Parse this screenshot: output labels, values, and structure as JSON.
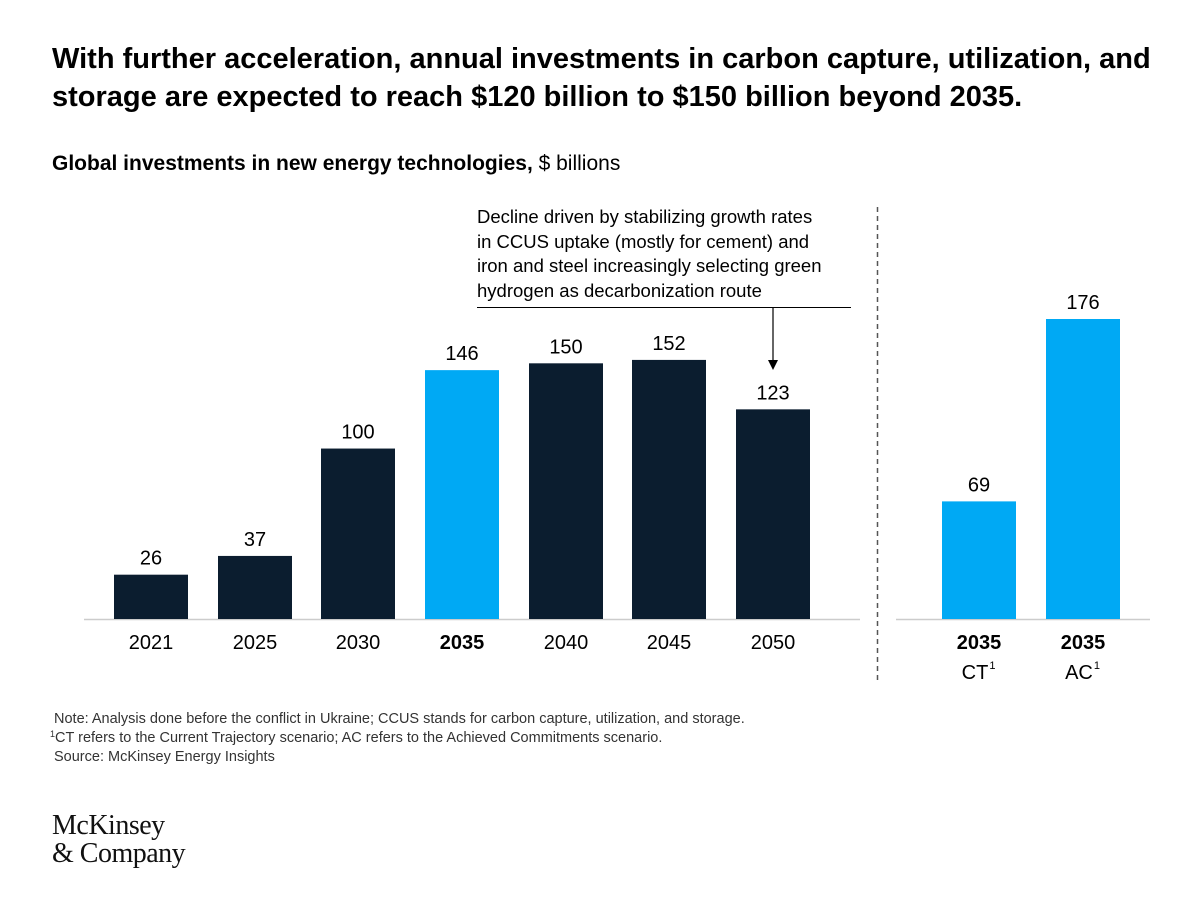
{
  "headline": "With further acceleration, annual investments in carbon capture, utilization, and storage are expected to reach $120 billion to $150 billion beyond 2035.",
  "subtitle": {
    "bold": "Global investments in new energy technologies,",
    "unit": " $ billions"
  },
  "annotation": {
    "lines": [
      "Decline driven by stabilizing growth rates",
      "in CCUS uptake (mostly for cement) and",
      "iron and steel increasingly selecting green",
      "hydrogen as decarbonization route"
    ]
  },
  "colors": {
    "dark": "#0b1d2f",
    "highlight": "#00a9f4",
    "axis": "#cccccc",
    "divider": "#555555"
  },
  "chart_data": {
    "type": "bar",
    "categories": [
      "2021",
      "2025",
      "2030",
      "2035",
      "2040",
      "2045",
      "2050",
      "2035",
      "2035"
    ],
    "category_sublabels": [
      "",
      "",
      "",
      "",
      "",
      "",
      "",
      "CT",
      "AC"
    ],
    "sublabel_footnote": "1",
    "bold_categories": [
      false,
      false,
      false,
      true,
      false,
      false,
      false,
      true,
      true
    ],
    "values": [
      26,
      37,
      100,
      146,
      150,
      152,
      123,
      69,
      176
    ],
    "value_labels": [
      "26",
      "37",
      "100",
      "146",
      "150",
      "152",
      "123",
      "69",
      "176"
    ],
    "bar_colors": [
      "dark",
      "dark",
      "dark",
      "highlight",
      "dark",
      "dark",
      "dark",
      "highlight",
      "highlight"
    ],
    "ylim": [
      0,
      176
    ],
    "grid": false
  },
  "notes": {
    "line1": "Note: Analysis done before the conflict in Ukraine; CCUS stands for carbon capture, utilization, and storage.",
    "line2_sup": "1",
    "line2": "CT refers to the Current Trajectory scenario; AC refers to the Achieved Commitments scenario.",
    "line3": "Source: McKinsey Energy Insights"
  },
  "logo": {
    "line1": "McKinsey",
    "line2": "& Company"
  }
}
